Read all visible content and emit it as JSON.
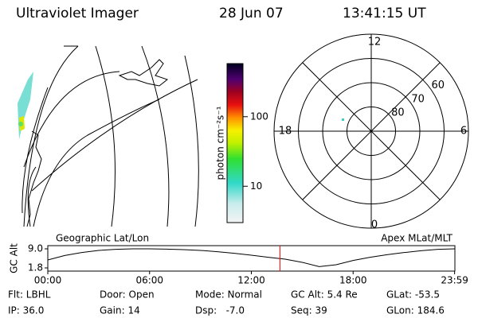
{
  "header": {
    "title": "Ultraviolet Imager",
    "date": "28 Jun 07",
    "time": "13:41:15 UT"
  },
  "colorbar": {
    "label": "photon cm⁻²s⁻¹",
    "log": true,
    "lim": [
      3,
      580
    ],
    "ticks": [
      10,
      100
    ]
  },
  "polar": {
    "rlim": [
      90,
      50
    ],
    "rticks": [
      80,
      70,
      60
    ],
    "mlt_ticks": [
      12,
      18,
      6,
      0
    ]
  },
  "strip": {
    "left_label": "Geographic Lat/Lon",
    "right_label": "Apex MLat/MLT",
    "ylabel": "GC Alt",
    "xlim": [
      0,
      24
    ],
    "ylim": [
      1.8,
      9.0
    ],
    "yticks": [
      {
        "value": 9.0,
        "label": "9.0"
      },
      {
        "value": 1.8,
        "label": "1.8"
      }
    ],
    "xticks": [
      {
        "value": 0,
        "label": "00:00"
      },
      {
        "value": 6,
        "label": "06:00"
      },
      {
        "value": 12,
        "label": "12:00"
      },
      {
        "value": 18,
        "label": "18:00"
      },
      {
        "value": 23.983,
        "label": "23:59"
      }
    ],
    "x": [
      0,
      1,
      2,
      3,
      4,
      5,
      6,
      7,
      8,
      9,
      10,
      11,
      12,
      13,
      14,
      15,
      16,
      17,
      18,
      19,
      20,
      21,
      22,
      23,
      24
    ],
    "altitude": [
      4.8,
      6.5,
      7.6,
      8.4,
      8.8,
      9.0,
      9.0,
      8.9,
      8.7,
      8.4,
      7.9,
      7.3,
      6.6,
      5.8,
      5.1,
      3.9,
      2.3,
      3.0,
      4.6,
      5.8,
      6.8,
      7.6,
      8.3,
      8.8,
      9.0
    ],
    "marker": 13.6875,
    "marker_color": "#ff0000"
  },
  "info": {
    "rows": [
      [
        "Flt: LBHL",
        "Door: Open",
        "Mode: Normal",
        "GC Alt: 5.4 Re",
        "GLat: -53.5"
      ],
      [
        "IP: 36.0",
        "Gain: 14",
        "Dsp:   -7.0",
        "Seq: 39",
        "GLon: 184.6"
      ]
    ]
  }
}
